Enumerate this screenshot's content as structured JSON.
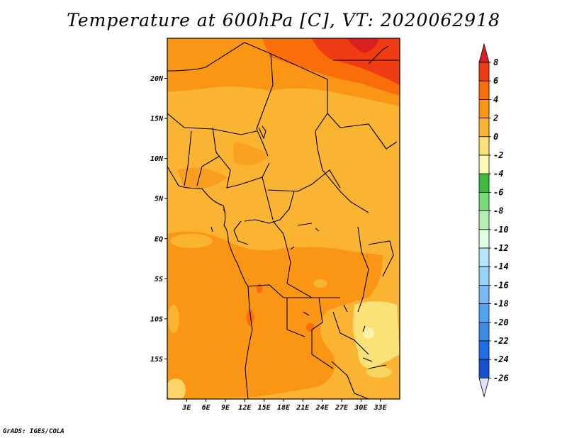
{
  "title": "Temperature at 600hPa [C], VT: 2020062918",
  "credit": "GrADS: IGES/COLA",
  "map": {
    "lon_range": [
      0,
      36
    ],
    "lat_range": [
      -20,
      25
    ],
    "x_ticks": [
      {
        "lon": 3,
        "label": "3E"
      },
      {
        "lon": 6,
        "label": "6E"
      },
      {
        "lon": 9,
        "label": "9E"
      },
      {
        "lon": 12,
        "label": "12E"
      },
      {
        "lon": 15,
        "label": "15E"
      },
      {
        "lon": 18,
        "label": "18E"
      },
      {
        "lon": 21,
        "label": "21E"
      },
      {
        "lon": 24,
        "label": "24E"
      },
      {
        "lon": 27,
        "label": "27E"
      },
      {
        "lon": 30,
        "label": "30E"
      },
      {
        "lon": 33,
        "label": "33E"
      }
    ],
    "y_ticks": [
      {
        "lat": 20,
        "label": "20N"
      },
      {
        "lat": 15,
        "label": "15N"
      },
      {
        "lat": 10,
        "label": "10N"
      },
      {
        "lat": 5,
        "label": "5N"
      },
      {
        "lat": 0,
        "label": "EQ"
      },
      {
        "lat": -5,
        "label": "5S"
      },
      {
        "lat": -10,
        "label": "10S"
      },
      {
        "lat": -15,
        "label": "15S"
      }
    ]
  },
  "colorbar": {
    "labels": [
      "8",
      "6",
      "4",
      "2",
      "0",
      "-2",
      "-4",
      "-6",
      "-8",
      "-10",
      "-12",
      "-14",
      "-16",
      "-18",
      "-20",
      "-22",
      "-24",
      "-26"
    ],
    "colors_top_to_bottom": [
      "#dc1e1e",
      "#f03c14",
      "#fa6e0a",
      "#fa9614",
      "#fab432",
      "#fae178",
      "#fafab4",
      "#3cbe3c",
      "#78dc78",
      "#b4f0b4",
      "#e1ffe1",
      "#b4e6fa",
      "#96d2fa",
      "#78b9fa",
      "#50a5f5",
      "#3c8ce6",
      "#1e6eeb",
      "#1450d2",
      "#0a2d96",
      "#000064"
    ],
    "bottom_arrow_color": "#e1e1ff"
  }
}
